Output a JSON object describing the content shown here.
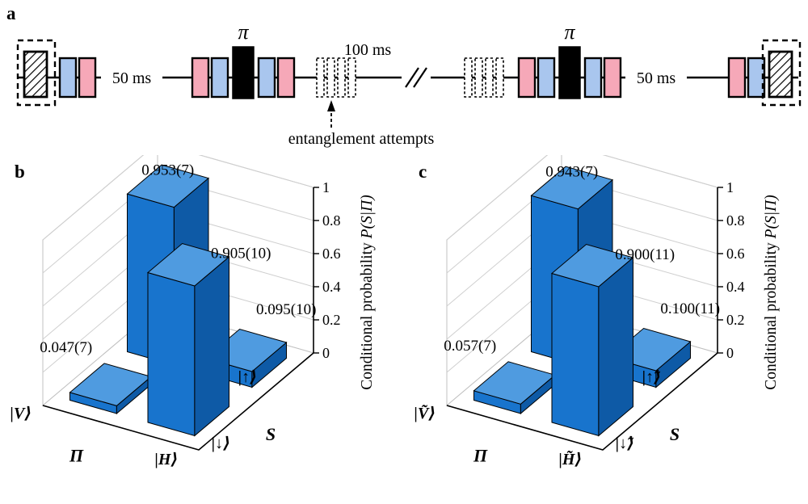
{
  "pulse_sequence": {
    "panel_label": "a",
    "wait_first": "50 ms",
    "pi_first": "π",
    "wait_middle": "100 ms",
    "pi_second": "π",
    "wait_last": "50 ms",
    "annotation": "entanglement attempts",
    "colors": {
      "blue_pulse": "#a9c6ee",
      "pink_pulse": "#f6a8b8",
      "black_pulse": "#000000"
    }
  },
  "chart_data": [
    {
      "panel_label": "b",
      "type": "bar",
      "style": "3d",
      "title": "",
      "x_axis": {
        "title": "Π",
        "categories": [
          "|V⟩",
          "|H⟩"
        ]
      },
      "y_axis": {
        "title": "S",
        "categories": [
          "|↓⟩",
          "|↑⟩"
        ]
      },
      "z_axis": {
        "title": "Conditional probability P(S|Π)",
        "title_parts": [
          {
            "text": "Conditional probability ",
            "italic": false
          },
          {
            "text": "P(S|Π)",
            "italic": true
          }
        ],
        "ticks": [
          "0",
          "0.2",
          "0.4",
          "0.6",
          "0.8",
          "1"
        ],
        "range": [
          0,
          1
        ],
        "grid": true
      },
      "bars": [
        {
          "x": "|V⟩",
          "y": "|↑⟩",
          "value": 0.953,
          "label": "0.953(7)"
        },
        {
          "x": "|H⟩",
          "y": "|↑⟩",
          "value": 0.095,
          "label": "0.095(10)"
        },
        {
          "x": "|V⟩",
          "y": "|↓⟩",
          "value": 0.047,
          "label": "0.047(7)"
        },
        {
          "x": "|H⟩",
          "y": "|↓⟩",
          "value": 0.905,
          "label": "0.905(10)"
        }
      ],
      "bar_colors": {
        "front": "#1874cd",
        "side": "#0e5aa6",
        "top": "#4f9be0"
      }
    },
    {
      "panel_label": "c",
      "type": "bar",
      "style": "3d",
      "title": "",
      "x_axis": {
        "title": "Π",
        "categories": [
          "|Ṽ⟩",
          "|H̃⟩"
        ]
      },
      "y_axis": {
        "title": "S",
        "categories": [
          "|↓̃⟩",
          "|↑̃⟩"
        ]
      },
      "z_axis": {
        "title": "Conditional probability P(S|Π)",
        "title_parts": [
          {
            "text": "Conditional probability ",
            "italic": false
          },
          {
            "text": "P(S|Π)",
            "italic": true
          }
        ],
        "ticks": [
          "0",
          "0.2",
          "0.4",
          "0.6",
          "0.8",
          "1"
        ],
        "range": [
          0,
          1
        ],
        "grid": true
      },
      "bars": [
        {
          "x": "|Ṽ⟩",
          "y": "|↑̃⟩",
          "value": 0.943,
          "label": "0.943(7)"
        },
        {
          "x": "|H̃⟩",
          "y": "|↑̃⟩",
          "value": 0.1,
          "label": "0.100(11)"
        },
        {
          "x": "|Ṽ⟩",
          "y": "|↓̃⟩",
          "value": 0.057,
          "label": "0.057(7)"
        },
        {
          "x": "|H̃⟩",
          "y": "|↓̃⟩",
          "value": 0.9,
          "label": "0.900(11)"
        }
      ],
      "bar_colors": {
        "front": "#1874cd",
        "side": "#0e5aa6",
        "top": "#4f9be0"
      }
    }
  ]
}
